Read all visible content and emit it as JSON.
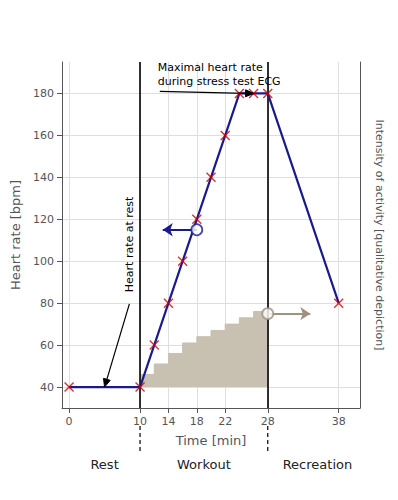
{
  "chart_data": {
    "type": "line",
    "xlabel": "Time [min]",
    "ylabel": "Heart rate [bpm]",
    "y2label": "Intensity of activity [qualitative depiction]",
    "xlim": [
      -1,
      41
    ],
    "ylim": [
      30,
      195
    ],
    "xticks": [
      0,
      10,
      14,
      18,
      22,
      28,
      38
    ],
    "yticks": [
      40,
      60,
      80,
      100,
      120,
      140,
      160,
      180
    ],
    "grid": true,
    "series": [
      {
        "type": "area",
        "line_style": "step",
        "x": [
          10,
          12,
          14,
          16,
          18,
          20,
          22,
          24,
          26,
          28
        ],
        "values": [
          46,
          51,
          56,
          61,
          64,
          67,
          70,
          73,
          76,
          76
        ],
        "base": 40,
        "color": "#C8C0B0"
      },
      {
        "type": "line",
        "x": [
          0,
          10,
          12,
          14,
          16,
          18,
          20,
          22,
          24,
          26,
          28,
          38
        ],
        "values": [
          40,
          40,
          60,
          80,
          100,
          120,
          140,
          160,
          180,
          180,
          180,
          80
        ],
        "color": "#1a1a8c"
      },
      {
        "type": "scatter",
        "marker": "x",
        "x": [
          0,
          10,
          12,
          14,
          16,
          18,
          20,
          22,
          24,
          26,
          28,
          38
        ],
        "values": [
          40,
          40,
          60,
          80,
          100,
          120,
          140,
          160,
          180,
          180,
          180,
          80
        ],
        "color": "#CC0000"
      }
    ],
    "vlines": [
      10,
      28
    ],
    "arrows": [
      {
        "from": [
          18,
          115
        ],
        "to": [
          13.2,
          115
        ],
        "color": "#1a1a8c"
      },
      {
        "from": [
          28,
          75
        ],
        "to": [
          34,
          75
        ],
        "color": "#A09080"
      }
    ],
    "annotations": [
      {
        "text": "Maximal heart rate\nduring stress test ECG",
        "xy": [
          26,
          180
        ],
        "xytext": [
          12.5,
          181
        ]
      },
      {
        "text": "Heart rate at rest",
        "xy": [
          5,
          40
        ],
        "xytext": [
          8.5,
          108
        ]
      }
    ],
    "phase_labels": [
      {
        "text": "Rest",
        "x": 5
      },
      {
        "text": "Workout",
        "x": 19
      },
      {
        "text": "Recreation",
        "x": 35
      }
    ]
  }
}
